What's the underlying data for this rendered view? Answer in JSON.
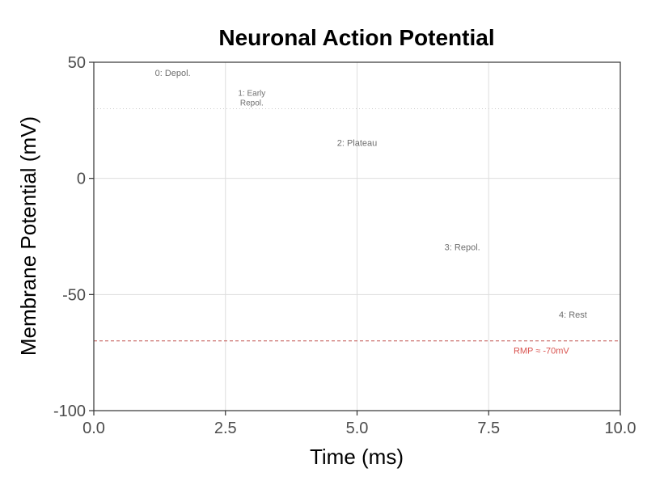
{
  "chart_data": {
    "type": "line",
    "title": "Neuronal Action Potential",
    "xlabel": "Time (ms)",
    "ylabel": "Membrane Potential (mV)",
    "xlim": [
      0,
      10
    ],
    "ylim": [
      -100,
      50
    ],
    "x_ticks": [
      0.0,
      2.5,
      5.0,
      7.5,
      10.0
    ],
    "x_tick_labels": [
      "0.0",
      "2.5",
      "5.0",
      "7.5",
      "10.0"
    ],
    "y_ticks": [
      -100,
      -50,
      0,
      50
    ],
    "y_tick_labels": [
      "-100",
      "-50",
      "0",
      "50"
    ],
    "grid": true,
    "series": [],
    "reference_lines": [
      {
        "y": 30,
        "style": "dotted",
        "color": "#cccccc"
      },
      {
        "y": -70,
        "style": "dashed",
        "color": "#c0504d"
      }
    ],
    "annotations": [
      {
        "x": 1.5,
        "y": 44,
        "lines": [
          "0: Depol."
        ]
      },
      {
        "x": 3.0,
        "y": 35.5,
        "lines": [
          "1: Early",
          "Repol."
        ],
        "small": true
      },
      {
        "x": 5.0,
        "y": 14,
        "lines": [
          "2: Plateau"
        ]
      },
      {
        "x": 7.0,
        "y": -31,
        "lines": [
          "3: Repol."
        ]
      },
      {
        "x": 9.1,
        "y": -60,
        "lines": [
          "4: Rest"
        ]
      }
    ],
    "rmp_label": {
      "x": 8.5,
      "y": -75.5,
      "text": "RMP ≈ -70mV",
      "color": "#d9534f"
    }
  }
}
